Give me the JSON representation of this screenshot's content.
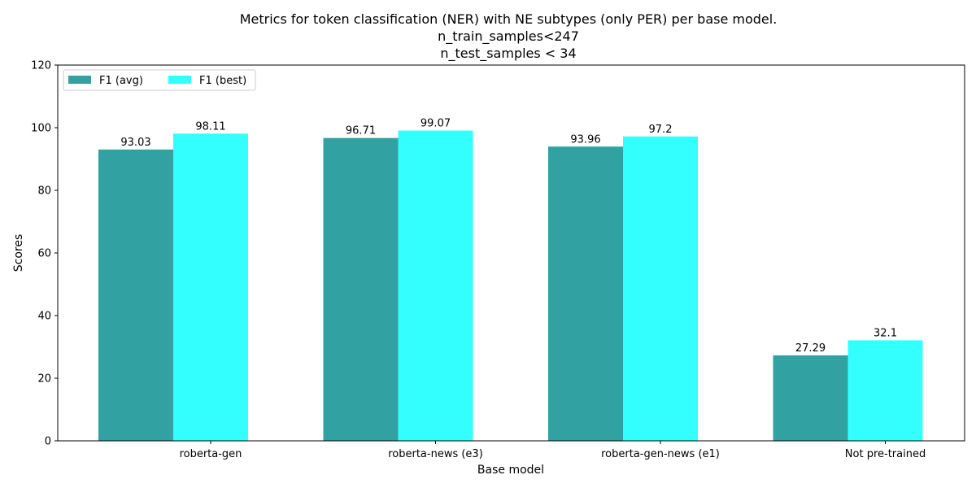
{
  "chart_data": {
    "type": "bar",
    "title": [
      "Metrics for token classification (NER) with NE subtypes (only PER) per base model.",
      "n_train_samples<247",
      " n_test_samples < 34"
    ],
    "xlabel": "Base model",
    "ylabel": "Scores",
    "ylim": [
      0,
      120
    ],
    "yticks": [
      "0",
      "20",
      "40",
      "60",
      "80",
      "100",
      "120"
    ],
    "categories": [
      "roberta-gen",
      "roberta-news (e3)",
      "roberta-gen-news (e1)",
      "Not pre-trained"
    ],
    "series": [
      {
        "name": "F1 (avg)",
        "color": "#31a1a1",
        "values": [
          93.03,
          96.71,
          93.96,
          27.29
        ],
        "labels": [
          "93.03",
          "96.71",
          "93.96",
          "27.29"
        ]
      },
      {
        "name": "F1 (best)",
        "color": "#33ffff",
        "values": [
          98.11,
          99.07,
          97.2,
          32.1
        ],
        "labels": [
          "98.11",
          "99.07",
          "97.2",
          "32.1"
        ]
      }
    ],
    "legend": "top-left",
    "grid": false
  }
}
